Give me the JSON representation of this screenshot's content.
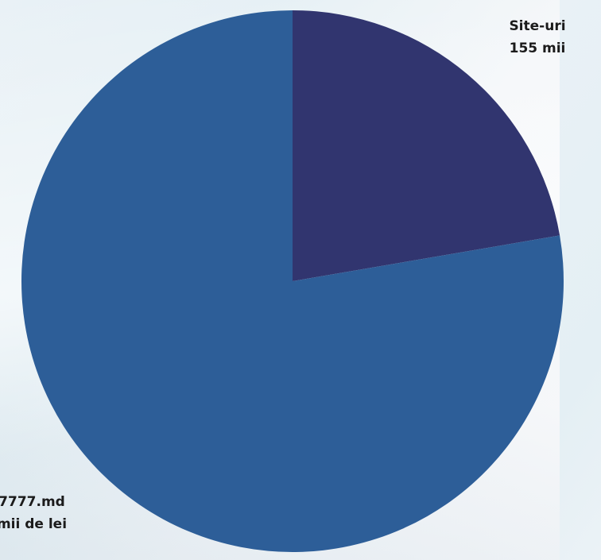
{
  "chart_data": {
    "type": "pie",
    "title": "",
    "slices": [
      {
        "label_line1": "Site-uri",
        "label_line2": "155 mii",
        "value": 22.3,
        "color": "#31356f"
      },
      {
        "label_line1": "7777.md",
        "label_line2": "mii de lei",
        "value": 77.7,
        "color": "#2d5e98"
      }
    ],
    "legend": "none"
  }
}
